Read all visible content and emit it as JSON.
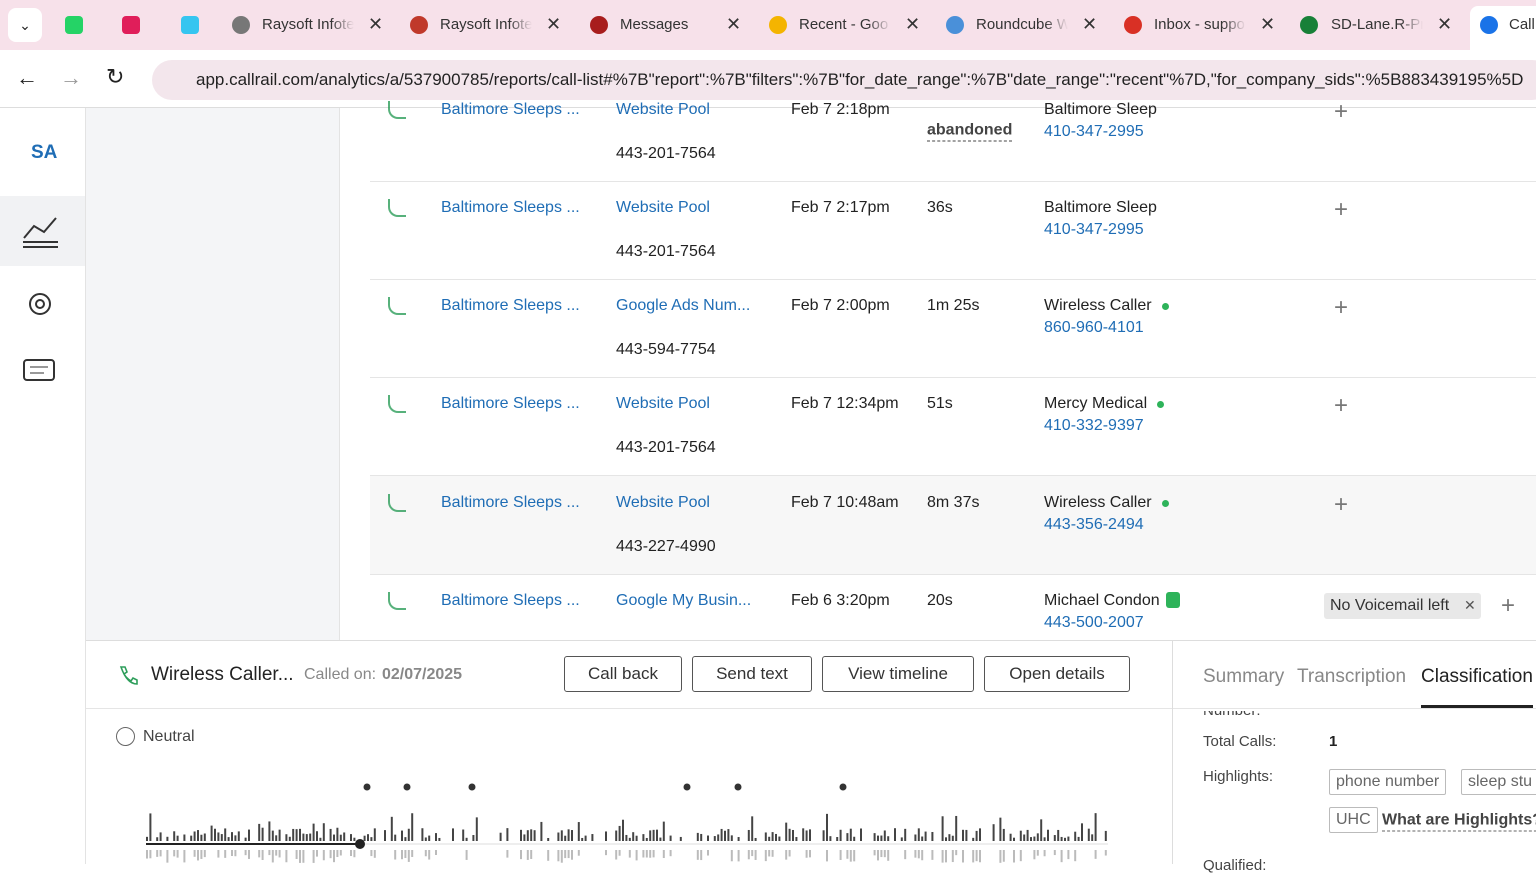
{
  "browser": {
    "tabs": [
      "Raysoft Infote",
      "Raysoft Infote",
      "Messages",
      "Recent - Goo",
      "Roundcube W",
      "Inbox - suppo",
      "SD-Lane.R-Pr",
      "Call"
    ],
    "url": "app.callrail.com/analytics/a/537900785/reports/call-list#%7B\"report\":%7B\"filters\":%7B\"for_date_range\":%7B\"date_range\":\"recent\"%7D,\"for_company_sids\":%5B883439195%5D"
  },
  "sidebar": {
    "initials": "SA"
  },
  "rows": [
    {
      "source": "Baltimore Sleeps ...",
      "tracking": "Website Pool",
      "number": "443-201-7564",
      "date": "Feb 7 2:18pm",
      "duration": "abandoned",
      "caller": "Baltimore Sleep",
      "phone": "410-347-2995"
    },
    {
      "source": "Baltimore Sleeps ...",
      "tracking": "Website Pool",
      "number": "443-201-7564",
      "date": "Feb 7 2:17pm",
      "duration": "36s",
      "caller": "Baltimore Sleep",
      "phone": "410-347-2995"
    },
    {
      "source": "Baltimore Sleeps ...",
      "tracking": "Google Ads Num...",
      "number": "443-594-7754",
      "date": "Feb 7 2:00pm",
      "duration": "1m 25s",
      "caller": "Wireless Caller",
      "phone": "860-960-4101"
    },
    {
      "source": "Baltimore Sleeps ...",
      "tracking": "Website Pool",
      "number": "443-201-7564",
      "date": "Feb 7 12:34pm",
      "duration": "51s",
      "caller": "Mercy Medical",
      "phone": "410-332-9397"
    },
    {
      "source": "Baltimore Sleeps ...",
      "tracking": "Website Pool",
      "number": "443-227-4990",
      "date": "Feb 7 10:48am",
      "duration": "8m 37s",
      "caller": "Wireless Caller",
      "phone": "443-356-2494"
    },
    {
      "source": "Baltimore Sleeps ...",
      "tracking": "Google My Busin...",
      "date": "Feb 6 3:20pm",
      "duration": "20s",
      "caller": "Michael Condon",
      "phone": "443-500-2007",
      "tag": "No Voicemail left"
    }
  ],
  "detail": {
    "caller": "Wireless Caller...",
    "called_on_label": "Called on:",
    "called_on": "02/07/2025",
    "buttons": [
      "Call back",
      "Send text",
      "View timeline",
      "Open details"
    ],
    "sentiment": "Neutral",
    "tabs": [
      "Summary",
      "Transcription",
      "Classification"
    ],
    "fields": {
      "number_label": "Number:",
      "total_calls_label": "Total Calls:",
      "total_calls": "1",
      "highlights_label": "Highlights:",
      "qualified_label": "Qualified:"
    },
    "highlights": [
      "phone number",
      "sleep stu",
      "UHC"
    ],
    "highlights_help": "What are Highlights?"
  }
}
